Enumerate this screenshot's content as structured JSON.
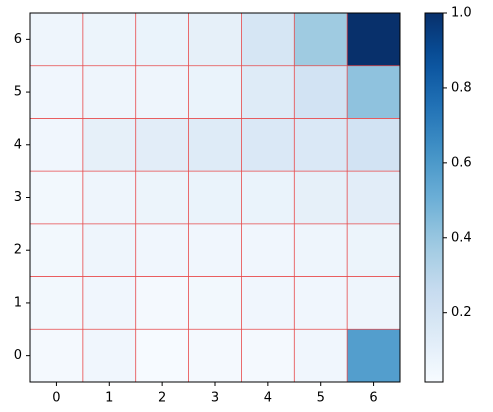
{
  "chart_data": {
    "type": "heatmap",
    "colormap": "Blues",
    "xlim": [
      -0.5,
      6.5
    ],
    "ylim": [
      -0.5,
      6.5
    ],
    "xticks": [
      0,
      1,
      2,
      3,
      4,
      5,
      6
    ],
    "yticks": [
      0,
      1,
      2,
      3,
      4,
      5,
      6
    ],
    "values": [
      [
        0.03,
        0.05,
        0.02,
        0.03,
        0.03,
        0.05,
        0.58
      ],
      [
        0.04,
        0.05,
        0.03,
        0.04,
        0.05,
        0.05,
        0.06
      ],
      [
        0.04,
        0.06,
        0.05,
        0.05,
        0.05,
        0.06,
        0.07
      ],
      [
        0.04,
        0.06,
        0.07,
        0.08,
        0.08,
        0.1,
        0.12
      ],
      [
        0.05,
        0.1,
        0.12,
        0.14,
        0.16,
        0.16,
        0.2
      ],
      [
        0.05,
        0.06,
        0.06,
        0.08,
        0.14,
        0.2,
        0.42
      ],
      [
        0.06,
        0.07,
        0.08,
        0.1,
        0.18,
        0.38,
        1.0
      ]
    ],
    "zlim": [
      0.015,
      1
    ],
    "zticks": [
      0.2,
      0.4,
      0.6,
      0.8,
      {
        "value": 1,
        "label": "1.0"
      }
    ],
    "grid": true,
    "grid_color": "#e8494a"
  }
}
